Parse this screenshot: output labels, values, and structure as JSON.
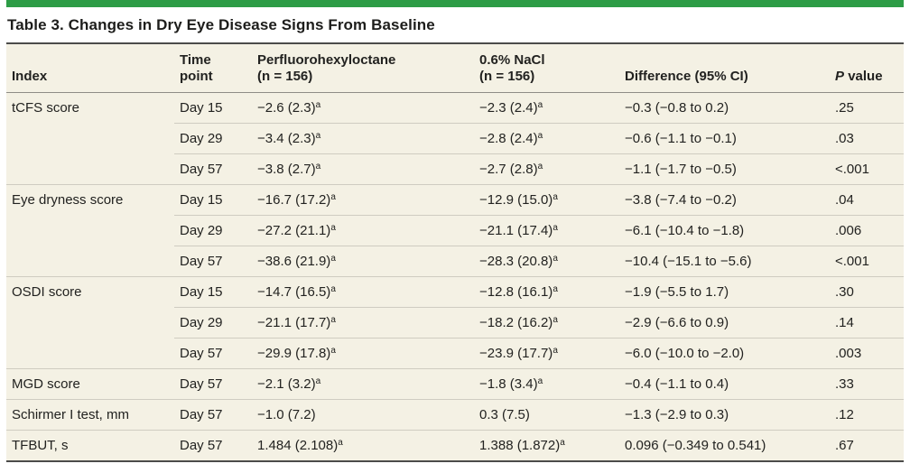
{
  "accent_color": "#2d9c46",
  "title": "Table 3. Changes in Dry Eye Disease Signs From Baseline",
  "table": {
    "header": {
      "index": "Index",
      "time_line1": "Time",
      "time_line2": "point",
      "pfho_line1": "Perfluorohexyloctane",
      "pfho_line2": "(n = 156)",
      "nacl_line1": "0.6% NaCl",
      "nacl_line2": "(n = 156)",
      "difference": "Difference (95% CI)",
      "p_italic": "P",
      "p_rest": "value"
    },
    "groups": [
      {
        "index": "tCFS score",
        "rows": [
          {
            "time": "Day 15",
            "pfho": "−2.6 (2.3)",
            "pfho_sup": "a",
            "nacl": "−2.3 (2.4)",
            "nacl_sup": "a",
            "diff": "−0.3 (−0.8 to 0.2)",
            "p": ".25"
          },
          {
            "time": "Day 29",
            "pfho": "−3.4 (2.3)",
            "pfho_sup": "a",
            "nacl": "−2.8 (2.4)",
            "nacl_sup": "a",
            "diff": "−0.6 (−1.1 to −0.1)",
            "p": ".03"
          },
          {
            "time": "Day 57",
            "pfho": "−3.8 (2.7)",
            "pfho_sup": "a",
            "nacl": "−2.7 (2.8)",
            "nacl_sup": "a",
            "diff": "−1.1 (−1.7 to −0.5)",
            "p": "<.001"
          }
        ]
      },
      {
        "index": "Eye dryness score",
        "rows": [
          {
            "time": "Day 15",
            "pfho": "−16.7 (17.2)",
            "pfho_sup": "a",
            "nacl": "−12.9 (15.0)",
            "nacl_sup": "a",
            "diff": "−3.8 (−7.4 to −0.2)",
            "p": ".04"
          },
          {
            "time": "Day 29",
            "pfho": "−27.2 (21.1)",
            "pfho_sup": "a",
            "nacl": "−21.1 (17.4)",
            "nacl_sup": "a",
            "diff": "−6.1 (−10.4 to −1.8)",
            "p": ".006"
          },
          {
            "time": "Day 57",
            "pfho": "−38.6 (21.9)",
            "pfho_sup": "a",
            "nacl": "−28.3 (20.8)",
            "nacl_sup": "a",
            "diff": "−10.4 (−15.1 to −5.6)",
            "p": "<.001"
          }
        ]
      },
      {
        "index": "OSDI score",
        "rows": [
          {
            "time": "Day 15",
            "pfho": "−14.7 (16.5)",
            "pfho_sup": "a",
            "nacl": "−12.8 (16.1)",
            "nacl_sup": "a",
            "diff": "−1.9 (−5.5 to 1.7)",
            "p": ".30"
          },
          {
            "time": "Day 29",
            "pfho": "−21.1 (17.7)",
            "pfho_sup": "a",
            "nacl": "−18.2 (16.2)",
            "nacl_sup": "a",
            "diff": "−2.9 (−6.6 to 0.9)",
            "p": ".14"
          },
          {
            "time": "Day 57",
            "pfho": "−29.9 (17.8)",
            "pfho_sup": "a",
            "nacl": "−23.9 (17.7)",
            "nacl_sup": "a",
            "diff": "−6.0 (−10.0 to −2.0)",
            "p": ".003"
          }
        ]
      },
      {
        "index": "MGD score",
        "rows": [
          {
            "time": "Day 57",
            "pfho": "−2.1 (3.2)",
            "pfho_sup": "a",
            "nacl": "−1.8 (3.4)",
            "nacl_sup": "a",
            "diff": "−0.4 (−1.1 to 0.4)",
            "p": ".33"
          }
        ]
      },
      {
        "index": "Schirmer I test, mm",
        "rows": [
          {
            "time": "Day 57",
            "pfho": "−1.0 (7.2)",
            "nacl": "0.3 (7.5)",
            "diff": "−1.3 (−2.9 to 0.3)",
            "p": ".12"
          }
        ]
      },
      {
        "index": "TFBUT, s",
        "rows": [
          {
            "time": "Day 57",
            "pfho": "1.484 (2.108)",
            "pfho_sup": "a",
            "nacl": "1.388 (1.872)",
            "nacl_sup": "a",
            "diff": "0.096 (−0.349 to 0.541)",
            "p": ".67"
          }
        ]
      }
    ]
  }
}
